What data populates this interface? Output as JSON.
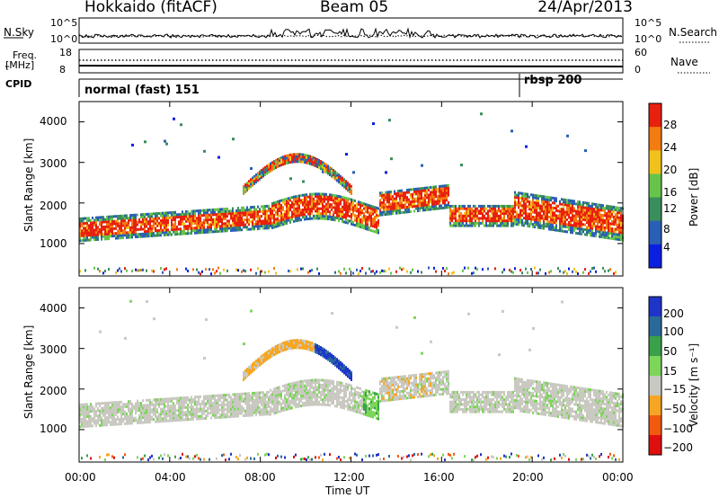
{
  "header": {
    "title": "Hokkaido (fitACF)",
    "beam": "Beam 05",
    "date": "24/Apr/2013"
  },
  "panels": {
    "nsky": {
      "left_label": "N.Sky",
      "right_label": "N.Search",
      "left_ticks": [
        "10^5",
        "10^0"
      ],
      "right_ticks": [
        "10^5",
        "10^0"
      ]
    },
    "freq": {
      "left_label_line1": "Freq.",
      "left_label_line2": "[MHz]",
      "right_label": "Nave",
      "left_ticks": [
        "18",
        "8"
      ],
      "right_ticks": [
        "60",
        "0"
      ]
    },
    "cpid": {
      "label": "CPID",
      "segments": [
        "normal (fast) 151",
        "rbsp 200"
      ]
    }
  },
  "chart_data": [
    {
      "type": "heatmap",
      "title": "",
      "ylabel": "Slant Range [km]",
      "yticks": [
        "1000",
        "2000",
        "3000",
        "4000"
      ],
      "colorbar_label": "Power [dB]",
      "colorbar_ticks": [
        "4",
        "8",
        "12",
        "16",
        "20",
        "24",
        "28"
      ],
      "colors": [
        "#0b1fe0",
        "#2a5fb6",
        "#3a8d5c",
        "#67c44a",
        "#f2c21c",
        "#f37b10",
        "#e8200e"
      ]
    },
    {
      "type": "heatmap",
      "title": "",
      "ylabel": "Slant Range [km]",
      "yticks": [
        "1000",
        "2000",
        "3000",
        "4000"
      ],
      "colorbar_label": "Velocity [m s⁻¹]",
      "colorbar_ticks": [
        "200",
        "100",
        "50",
        "15",
        "−15",
        "−50",
        "−100",
        "−200"
      ],
      "colors": [
        "#1e35c9",
        "#2a6a9a",
        "#3aa04a",
        "#7dd55a",
        "#c9c9c1",
        "#f6a623",
        "#f25a0f",
        "#e00f0f"
      ]
    }
  ],
  "xaxis": {
    "label": "Time UT",
    "ticks": [
      "00:00",
      "04:00",
      "08:00",
      "12:00",
      "16:00",
      "20:00",
      "00:00"
    ]
  }
}
